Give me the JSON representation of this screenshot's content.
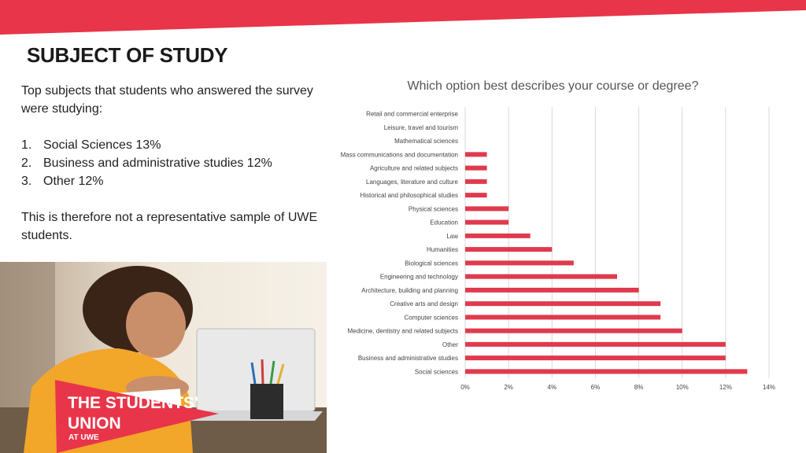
{
  "page": {
    "title": "SUBJECT OF STUDY",
    "intro": "Top subjects that students who answered the survey were studying:",
    "top_subjects": [
      {
        "num": "1.",
        "text": "Social Sciences 13%"
      },
      {
        "num": "2.",
        "text": "Business and administrative studies 12%"
      },
      {
        "num": "3.",
        "text": "Other 12%"
      }
    ],
    "conclusion": "This is therefore not a representative sample of UWE students.",
    "logo_text": [
      "THE STUDENTS'",
      "UNION",
      "AT UWE"
    ]
  },
  "colors": {
    "brand_red": "#e8354a",
    "bar": "#e03a4e",
    "grid": "#d9d9d9"
  },
  "chart_data": {
    "type": "bar",
    "orientation": "horizontal",
    "title": "Which option best describes your course or degree?",
    "categories": [
      "Retail and commercial enterprise",
      "Leisure, travel and tourism",
      "Mathematical sciences",
      "Mass communications and documentation",
      "Agriculture and related subjects",
      "Languages, literature and culture",
      "Historical and philosophical studies",
      "Physical sciences",
      "Education",
      "Law",
      "Humanities",
      "Biological sciences",
      "Engineering and technology",
      "Architecture, building and planning",
      "Creative arts and design",
      "Computer sciences",
      "Medicine, dentistry and related subjects",
      "Other",
      "Business and administrative studies",
      "Social sciences"
    ],
    "values": [
      0,
      0,
      0,
      1,
      1,
      1,
      1,
      2,
      2,
      3,
      4,
      5,
      7,
      8,
      9,
      9,
      10,
      12,
      12,
      13
    ],
    "xlim": [
      0,
      14
    ],
    "ticks": [
      "0%",
      "2%",
      "4%",
      "6%",
      "8%",
      "10%",
      "12%",
      "14%"
    ],
    "grid": true,
    "legend": "none"
  }
}
